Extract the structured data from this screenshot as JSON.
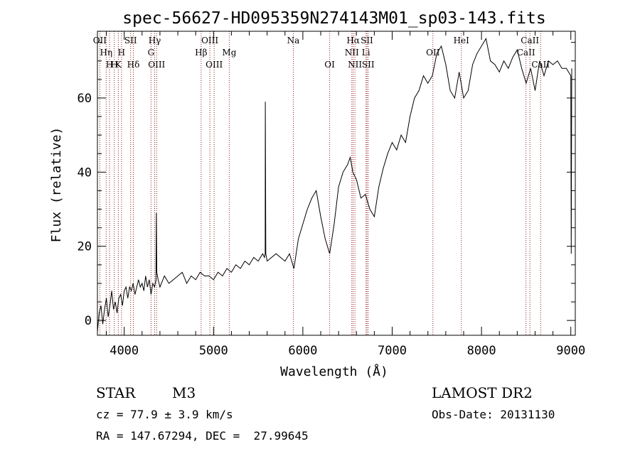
{
  "chart_data": {
    "type": "line",
    "title": "spec-56627-HD095359N274143M01_sp03-143.fits",
    "xlabel": "Wavelength (Å)",
    "ylabel": "Flux (relative)",
    "xlim": [
      3700,
      9050
    ],
    "ylim": [
      -4,
      78
    ],
    "x_ticks": [
      4000,
      5000,
      6000,
      7000,
      8000,
      9000
    ],
    "y_ticks": [
      0,
      20,
      40,
      60
    ],
    "series": [
      {
        "color": "#000000",
        "x": [
          3700,
          3720,
          3740,
          3760,
          3780,
          3800,
          3820,
          3840,
          3860,
          3880,
          3900,
          3920,
          3940,
          3960,
          3980,
          4000,
          4020,
          4040,
          4060,
          4080,
          4100,
          4120,
          4140,
          4160,
          4180,
          4200,
          4220,
          4240,
          4260,
          4280,
          4300,
          4320,
          4340,
          4355,
          4360,
          4365,
          4380,
          4400,
          4450,
          4500,
          4550,
          4600,
          4650,
          4700,
          4750,
          4800,
          4850,
          4900,
          4950,
          5000,
          5050,
          5100,
          5150,
          5200,
          5250,
          5300,
          5350,
          5400,
          5450,
          5500,
          5550,
          5570,
          5578,
          5580,
          5585,
          5600,
          5650,
          5700,
          5750,
          5800,
          5850,
          5900,
          5950,
          6000,
          6050,
          6100,
          6150,
          6200,
          6250,
          6300,
          6350,
          6400,
          6450,
          6500,
          6530,
          6560,
          6600,
          6650,
          6700,
          6750,
          6800,
          6850,
          6900,
          6950,
          7000,
          7050,
          7100,
          7150,
          7200,
          7250,
          7300,
          7350,
          7400,
          7450,
          7500,
          7550,
          7600,
          7650,
          7700,
          7750,
          7800,
          7850,
          7900,
          7950,
          8000,
          8050,
          8100,
          8150,
          8200,
          8250,
          8300,
          8350,
          8400,
          8450,
          8500,
          8550,
          8600,
          8650,
          8700,
          8750,
          8800,
          8850,
          8900,
          8950,
          9000,
          9005,
          9010
        ],
        "y": [
          -3,
          2,
          4,
          -1,
          3,
          6,
          1,
          4,
          8,
          3,
          5,
          2,
          6,
          7,
          4,
          8,
          9,
          6,
          9,
          8,
          10,
          7,
          9,
          11,
          9,
          10,
          8,
          12,
          9,
          11,
          7,
          10,
          9,
          11,
          29,
          13,
          11,
          9,
          12,
          10,
          11,
          12,
          13,
          10,
          12,
          11,
          13,
          12,
          12,
          11,
          13,
          12,
          14,
          13,
          15,
          14,
          16,
          15,
          17,
          16,
          18,
          17,
          18,
          59,
          18,
          16,
          17,
          18,
          17,
          16,
          18,
          14,
          22,
          26,
          30,
          33,
          35,
          28,
          22,
          18,
          26,
          36,
          40,
          42,
          44,
          40,
          38,
          33,
          34,
          30,
          28,
          36,
          41,
          45,
          48,
          46,
          50,
          48,
          55,
          60,
          62,
          66,
          64,
          66,
          72,
          74,
          69,
          62,
          60,
          67,
          60,
          62,
          69,
          72,
          74,
          76,
          70,
          69,
          67,
          70,
          68,
          71,
          73,
          68,
          64,
          68,
          62,
          70,
          66,
          70,
          69,
          70,
          68,
          68,
          66,
          18,
          68
        ]
      }
    ],
    "line_markers": [
      {
        "wavelength": 3727,
        "label": "OII",
        "row": 0
      },
      {
        "wavelength": 3798,
        "label": "Hη",
        "row": 1
      },
      {
        "wavelength": 3835,
        "label": "H",
        "row": 2
      },
      {
        "wavelength": 3889,
        "label": "H",
        "row": 2
      },
      {
        "wavelength": 3934,
        "label": "K",
        "row": 2
      },
      {
        "wavelength": 3970,
        "label": "H",
        "row": 1
      },
      {
        "wavelength": 4072,
        "label": "SII",
        "row": 0
      },
      {
        "wavelength": 4102,
        "label": "Hδ",
        "row": 2
      },
      {
        "wavelength": 4300,
        "label": "G",
        "row": 1
      },
      {
        "wavelength": 4341,
        "label": "Hγ",
        "row": 0
      },
      {
        "wavelength": 4363,
        "label": "OIII",
        "row": 2
      },
      {
        "wavelength": 4861,
        "label": "Hβ",
        "row": 1
      },
      {
        "wavelength": 4959,
        "label": "OIII",
        "row": 0
      },
      {
        "wavelength": 5007,
        "label": "OIII",
        "row": 2
      },
      {
        "wavelength": 5176,
        "label": "Mg",
        "row": 1
      },
      {
        "wavelength": 5893,
        "label": "Na",
        "row": 0
      },
      {
        "wavelength": 6300,
        "label": "OI",
        "row": 2
      },
      {
        "wavelength": 6548,
        "label": "NII",
        "row": 1
      },
      {
        "wavelength": 6563,
        "label": "Hα",
        "row": 0
      },
      {
        "wavelength": 6583,
        "label": "NII",
        "row": 2
      },
      {
        "wavelength": 6707,
        "label": "Li",
        "row": 1
      },
      {
        "wavelength": 6717,
        "label": "SII",
        "row": 0
      },
      {
        "wavelength": 6731,
        "label": "SII",
        "row": 2
      },
      {
        "wavelength": 7456,
        "label": "OII",
        "row": 1
      },
      {
        "wavelength": 7774,
        "label": "HeI",
        "row": 0
      },
      {
        "wavelength": 8498,
        "label": "CaII",
        "row": 1
      },
      {
        "wavelength": 8542,
        "label": "CaII",
        "row": 0
      },
      {
        "wavelength": 8662,
        "label": "CaII",
        "row": 2
      }
    ],
    "grid": false,
    "legend": "none"
  },
  "info": {
    "object_class": "STAR",
    "subclass": "M3",
    "redshift": "cz = 77.9 ± 3.9 km/s",
    "coords": "RA = 147.67294, DEC =  27.99645",
    "survey": "LAMOST DR2",
    "obs_date": "Obs-Date: 20131130"
  }
}
